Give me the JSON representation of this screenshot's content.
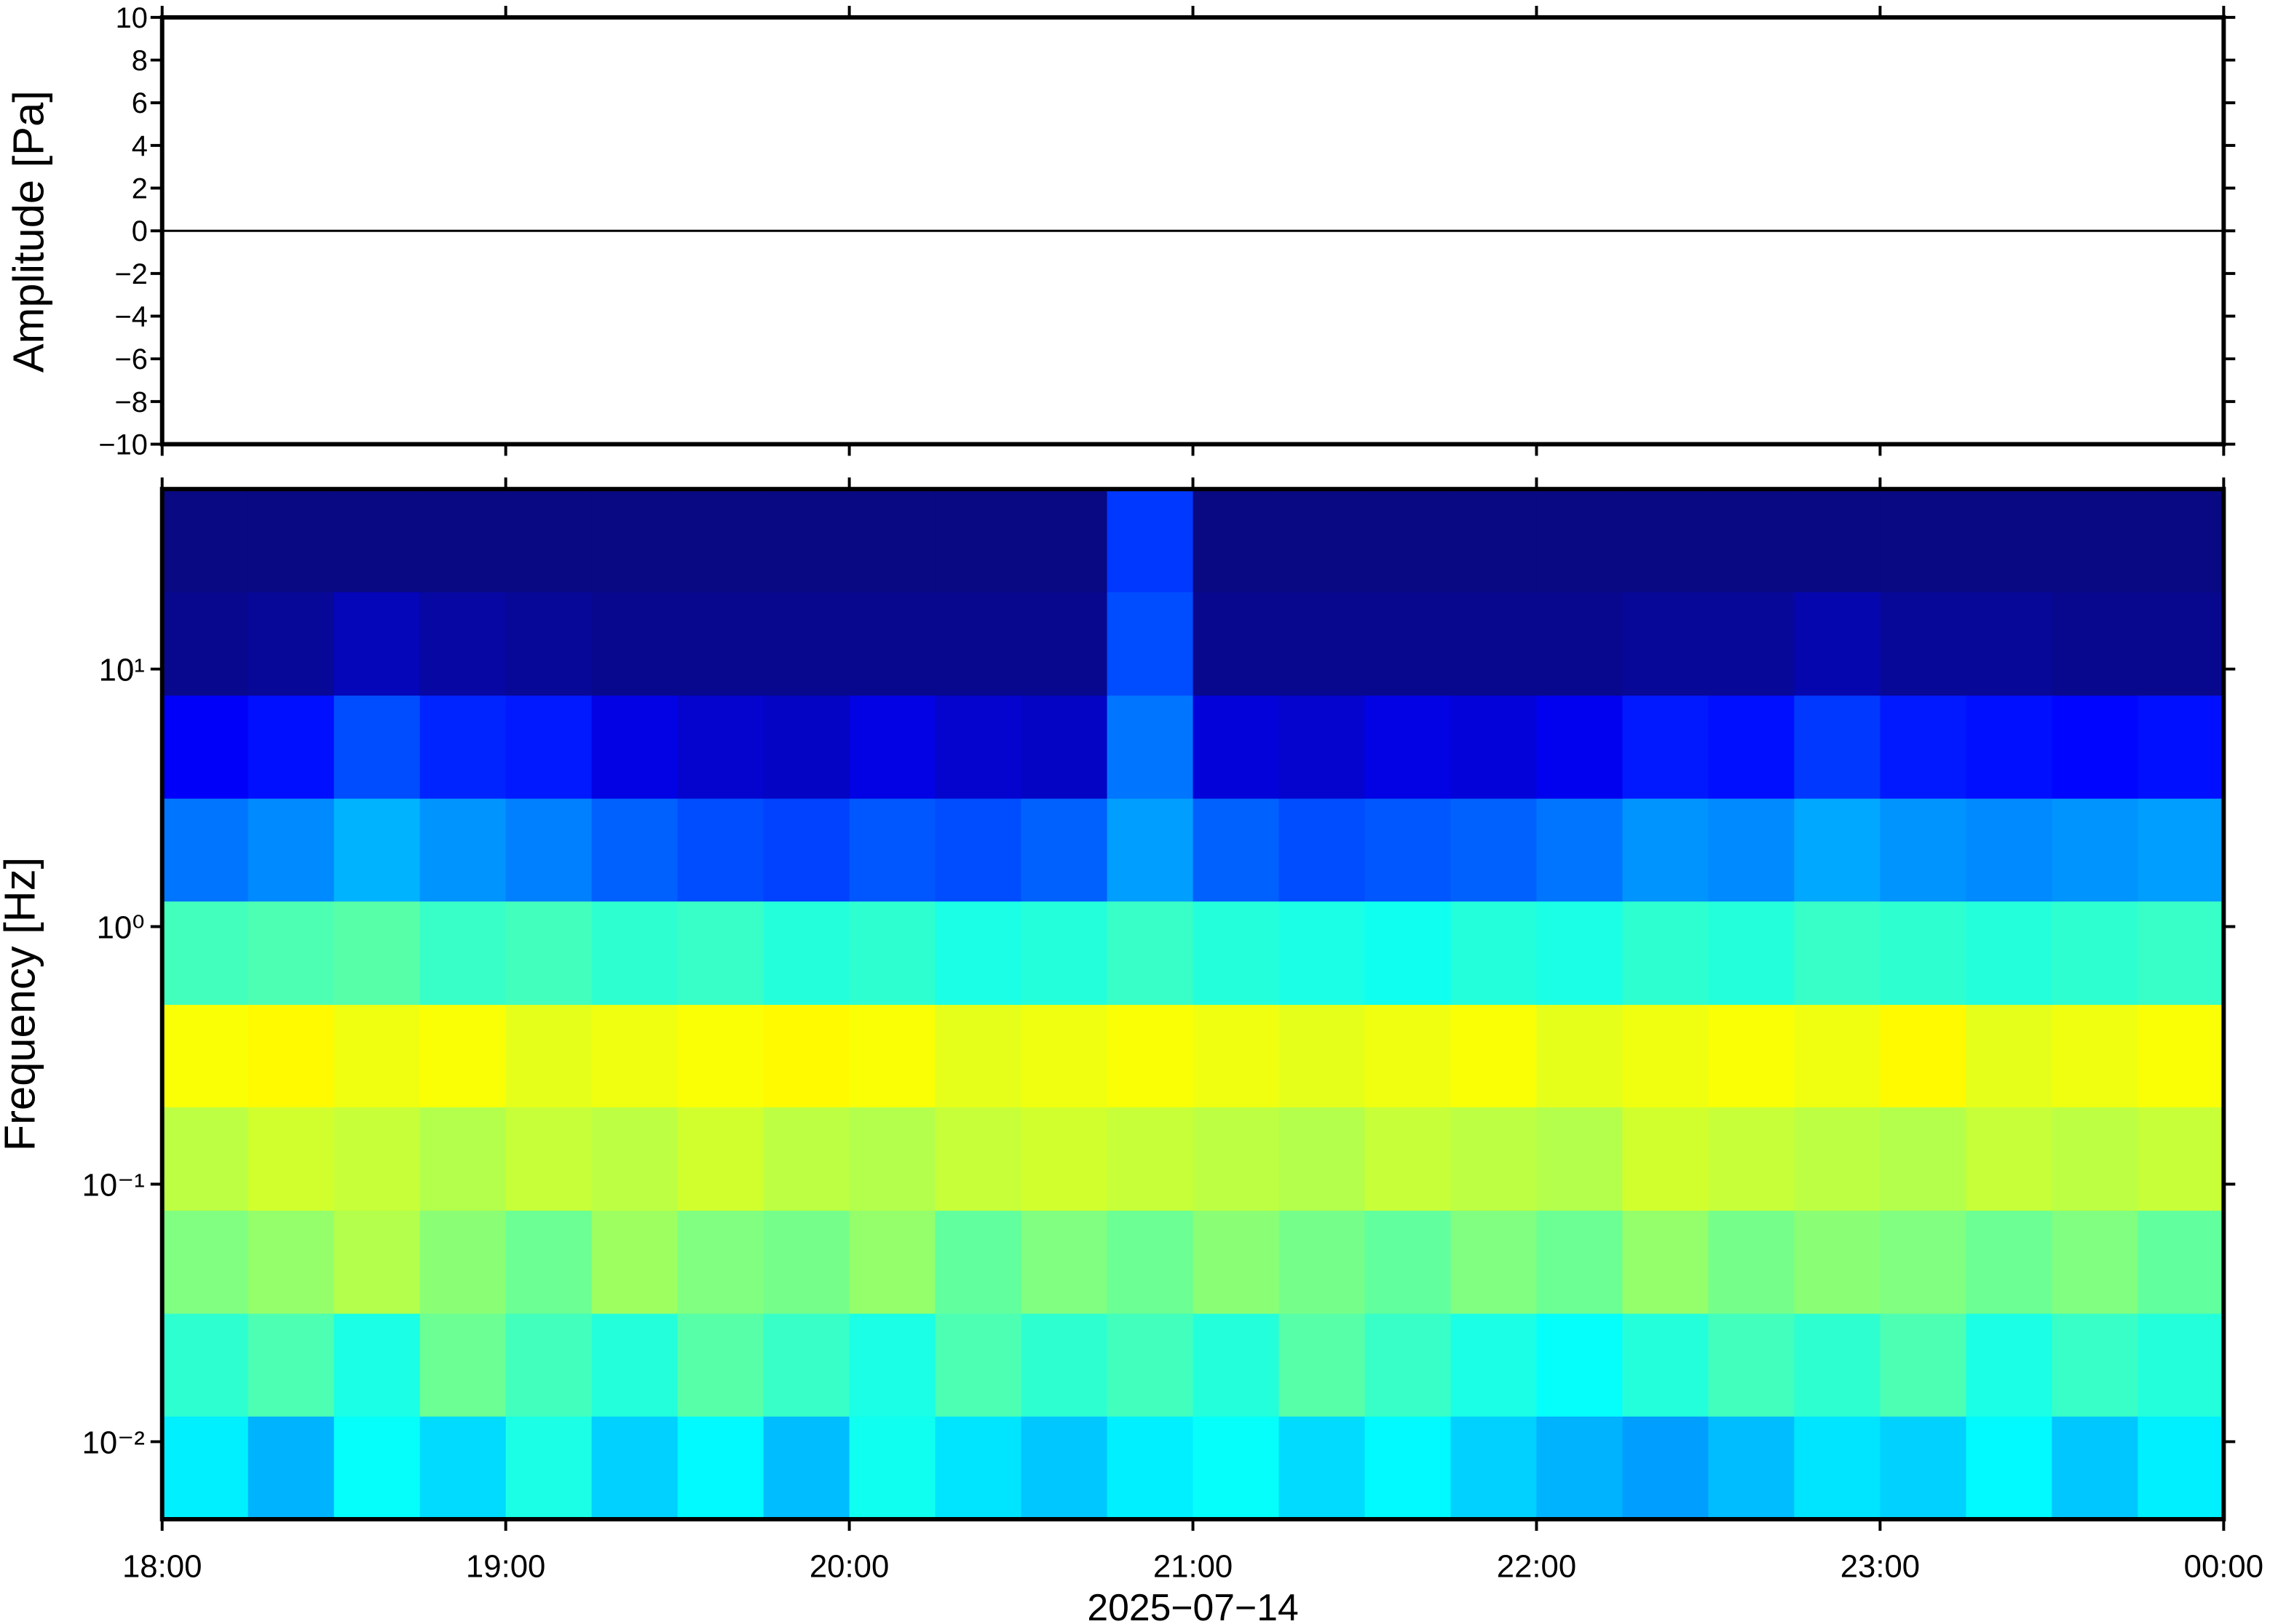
{
  "chart_data": [
    {
      "type": "line",
      "ylabel": "Amplitude [Pa]",
      "xlim": [
        18,
        24
      ],
      "ylim": [
        -10,
        10
      ],
      "yticks": [
        {
          "value": -10,
          "label": "−10"
        },
        {
          "value": -8,
          "label": "−8"
        },
        {
          "value": -6,
          "label": "−6"
        },
        {
          "value": -4,
          "label": "−4"
        },
        {
          "value": -2,
          "label": "−2"
        },
        0,
        2,
        4,
        6,
        8,
        10
      ],
      "series": [
        {
          "color": "#000000",
          "x": [
            18,
            18.5,
            19,
            19.5,
            20,
            20.5,
            21,
            21.5,
            22,
            22.5,
            23,
            23.5,
            24
          ],
          "values": [
            0,
            0,
            0,
            0,
            0,
            0,
            0,
            0,
            0,
            0,
            0,
            0,
            0
          ]
        }
      ]
    },
    {
      "type": "heatmap",
      "ylabel": "Frequency [Hz]",
      "xlabel": "2025−07−14",
      "xlim": [
        18,
        24
      ],
      "xticks": [
        {
          "value": 18,
          "label": "18:00"
        },
        {
          "value": 19,
          "label": "19:00"
        },
        {
          "value": 20,
          "label": "20:00"
        },
        {
          "value": 21,
          "label": "21:00"
        },
        {
          "value": 22,
          "label": "22:00"
        },
        {
          "value": 23,
          "label": "23:00"
        },
        {
          "value": 24,
          "label": "00:00"
        }
      ],
      "ylim": [
        0.005,
        50
      ],
      "log_y": true,
      "yticks": [
        {
          "value": 0.01,
          "label": "10⁻²"
        },
        {
          "value": 0.1,
          "label": "10⁻¹"
        },
        {
          "value": 1,
          "label": "10⁰"
        },
        {
          "value": 10,
          "label": "10¹"
        }
      ],
      "x_edges": [
        18,
        18.25,
        18.5,
        18.75,
        19,
        19.25,
        19.5,
        19.75,
        20,
        20.25,
        20.5,
        20.75,
        21,
        21.25,
        21.5,
        21.75,
        22,
        22.25,
        22.5,
        22.75,
        23,
        23.25,
        23.5,
        23.75,
        24
      ],
      "y_edges": [
        0.005,
        0.0126,
        0.0316,
        0.0794,
        0.2,
        0.5,
        1.26,
        3.16,
        7.94,
        20,
        50
      ],
      "zlim": [
        0,
        1
      ],
      "colorscale": [
        [
          0,
          "#0a0a78"
        ],
        [
          0.125,
          "#0000ff"
        ],
        [
          0.375,
          "#00ffff"
        ],
        [
          0.625,
          "#ffff00"
        ],
        [
          0.875,
          "#ff0000"
        ],
        [
          1,
          "#7f0000"
        ]
      ],
      "values": [
        [
          0.36,
          0.3,
          0.38,
          0.34,
          0.4,
          0.33,
          0.37,
          0.31,
          0.39,
          0.35,
          0.32,
          0.36,
          0.38,
          0.34,
          0.37,
          0.33,
          0.3,
          0.28,
          0.31,
          0.35,
          0.33,
          0.37,
          0.32,
          0.36
        ],
        [
          0.42,
          0.45,
          0.4,
          0.48,
          0.44,
          0.41,
          0.46,
          0.43,
          0.4,
          0.45,
          0.42,
          0.44,
          0.41,
          0.46,
          0.43,
          0.4,
          0.38,
          0.41,
          0.44,
          0.42,
          0.45,
          0.4,
          0.43,
          0.41
        ],
        [
          0.5,
          0.52,
          0.55,
          0.51,
          0.48,
          0.53,
          0.5,
          0.49,
          0.52,
          0.47,
          0.5,
          0.48,
          0.51,
          0.49,
          0.47,
          0.5,
          0.48,
          0.52,
          0.49,
          0.51,
          0.5,
          0.48,
          0.5,
          0.47
        ],
        [
          0.56,
          0.58,
          0.57,
          0.55,
          0.57,
          0.56,
          0.58,
          0.56,
          0.55,
          0.57,
          0.58,
          0.57,
          0.56,
          0.55,
          0.57,
          0.56,
          0.55,
          0.58,
          0.57,
          0.56,
          0.55,
          0.57,
          0.56,
          0.57
        ],
        [
          0.62,
          0.63,
          0.61,
          0.62,
          0.6,
          0.61,
          0.62,
          0.63,
          0.62,
          0.6,
          0.61,
          0.62,
          0.61,
          0.6,
          0.61,
          0.62,
          0.6,
          0.61,
          0.62,
          0.61,
          0.63,
          0.6,
          0.61,
          0.62
        ],
        [
          0.44,
          0.45,
          0.46,
          0.43,
          0.44,
          0.42,
          0.43,
          0.41,
          0.42,
          0.4,
          0.41,
          0.43,
          0.41,
          0.4,
          0.39,
          0.41,
          0.4,
          0.42,
          0.41,
          0.43,
          0.42,
          0.41,
          0.42,
          0.43
        ],
        [
          0.24,
          0.26,
          0.3,
          0.27,
          0.25,
          0.22,
          0.2,
          0.19,
          0.21,
          0.2,
          0.22,
          0.28,
          0.22,
          0.2,
          0.21,
          0.22,
          0.24,
          0.27,
          0.26,
          0.29,
          0.27,
          0.26,
          0.27,
          0.28
        ],
        [
          0.12,
          0.14,
          0.2,
          0.16,
          0.15,
          0.1,
          0.08,
          0.07,
          0.1,
          0.08,
          0.07,
          0.24,
          0.09,
          0.08,
          0.1,
          0.09,
          0.11,
          0.15,
          0.14,
          0.18,
          0.15,
          0.14,
          0.13,
          0.14
        ],
        [
          0.02,
          0.03,
          0.06,
          0.04,
          0.03,
          0.02,
          0.02,
          0.02,
          0.02,
          0.02,
          0.02,
          0.2,
          0.02,
          0.02,
          0.02,
          0.02,
          0.02,
          0.03,
          0.03,
          0.05,
          0.03,
          0.03,
          0.02,
          0.02
        ],
        [
          0.01,
          0.01,
          0.01,
          0.01,
          0.01,
          0.01,
          0.01,
          0.01,
          0.01,
          0.01,
          0.01,
          0.18,
          0.01,
          0.01,
          0.01,
          0.01,
          0.01,
          0.01,
          0.01,
          0.01,
          0.01,
          0.01,
          0.01,
          0.01
        ]
      ]
    }
  ]
}
